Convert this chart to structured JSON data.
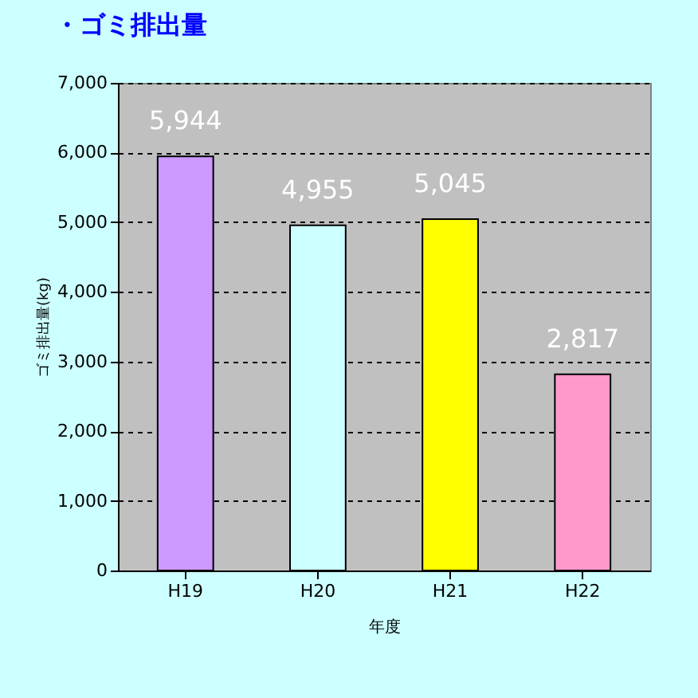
{
  "chart_data": {
    "type": "bar",
    "title": "・ゴミ排出量",
    "xlabel": "年度",
    "ylabel": "ゴミ排出量(kg)",
    "categories": [
      "H19",
      "H20",
      "H21",
      "H22"
    ],
    "values": [
      5944,
      4955,
      5045,
      2817
    ],
    "colors": [
      "#cc99ff",
      "#ccffff",
      "#ffff00",
      "#ff99cc"
    ],
    "value_labels": [
      "5,944",
      "4,955",
      "5,045",
      "2,817"
    ],
    "ylim": [
      0,
      7000
    ],
    "yticks": [
      0,
      {
        "value": 1000,
        "label": "1,000"
      },
      {
        "value": 2000,
        "label": "2,000"
      },
      {
        "value": 3000,
        "label": "3,000"
      },
      {
        "value": 4000,
        "label": "4,000"
      },
      {
        "value": 5000,
        "label": "5,000"
      },
      {
        "value": 6000,
        "label": "6,000"
      },
      {
        "value": 7000,
        "label": "7,000"
      }
    ],
    "grid": "y"
  }
}
